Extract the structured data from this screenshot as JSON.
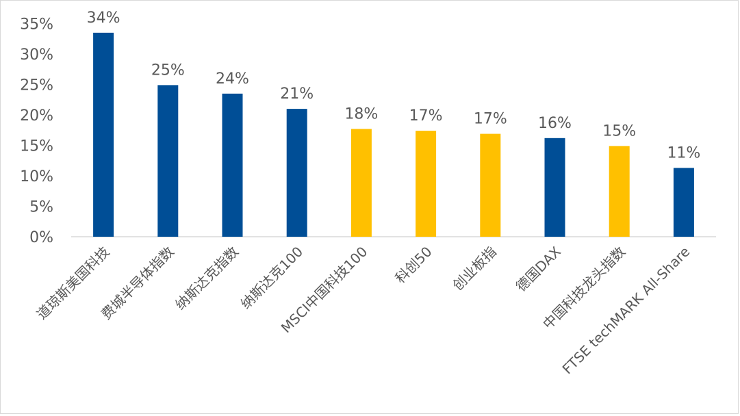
{
  "chart_data": {
    "type": "bar",
    "title": "",
    "xlabel": "",
    "ylabel": "",
    "ylim": [
      0,
      35
    ],
    "yticks": [
      "0%",
      "5%",
      "10%",
      "15%",
      "20%",
      "25%",
      "30%",
      "35%"
    ],
    "grid": false,
    "legend": "none",
    "categories": [
      "道琼斯美国科技",
      "费城半导体指数",
      "纳斯达克指数",
      "纳斯达克100",
      "MSCI中国科技100",
      "科创50",
      "创业板指",
      "德国DAX",
      "中国科技龙头指数",
      "FTSE techMARK All-Share"
    ],
    "values": [
      33.5,
      24.9,
      23.5,
      21.0,
      17.7,
      17.4,
      16.9,
      16.2,
      14.9,
      11.3
    ],
    "data_labels": [
      "34%",
      "25%",
      "24%",
      "21%",
      "18%",
      "17%",
      "17%",
      "16%",
      "15%",
      "11%"
    ],
    "bar_colors": [
      "#004e96",
      "#004e96",
      "#004e96",
      "#004e96",
      "#ffc000",
      "#ffc000",
      "#ffc000",
      "#004e96",
      "#ffc000",
      "#004e96"
    ]
  }
}
